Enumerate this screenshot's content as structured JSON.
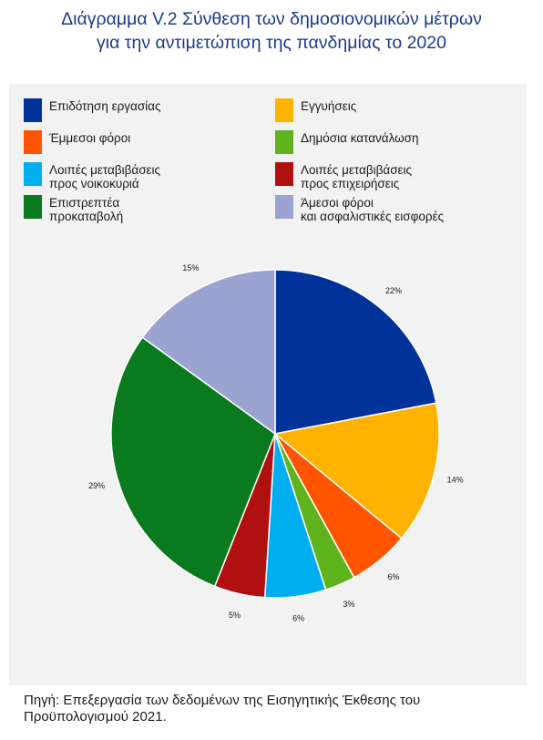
{
  "title": {
    "line1": "Διάγραμμα V.2 Σύνθεση των δημοσιονομικών μέτρων",
    "line2": "για την αντιμετώπιση της πανδημίας το 2020"
  },
  "legend": [
    {
      "line1": "Επιδότηση εργασίας",
      "line2": "",
      "color": "#003399"
    },
    {
      "line1": "Εγγυήσεις",
      "line2": "",
      "color": "#FFB300"
    },
    {
      "line1": "Έμμεσοι φόροι",
      "line2": "",
      "color": "#FF5500"
    },
    {
      "line1": "Δημόσια κατανάλωση",
      "line2": "",
      "color": "#5FB31C"
    },
    {
      "line1": "Λοιπές μεταβιβάσεις",
      "line2": "προς νοικοκυριά",
      "color": "#00AEEF"
    },
    {
      "line1": "Λοιπές μεταβιβάσεις",
      "line2": "προς επιχειρήσεις",
      "color": "#B01010"
    },
    {
      "line1": "Επιστρεπτέα",
      "line2": "προκαταβολή",
      "color": "#0A7A1E"
    },
    {
      "line1": "Άμεσοι φόροι",
      "line2": "και ασφαλιστικές εισφορές",
      "color": "#9BA3D0"
    }
  ],
  "chart_data": {
    "type": "pie",
    "categories": [
      "Επιδότηση εργασίας",
      "Εγγυήσεις",
      "Έμμεσοι φόροι",
      "Δημόσια κατανάλωση",
      "Λοιπές μεταβιβάσεις προς νοικοκυριά",
      "Λοιπές μεταβιβάσεις προς επιχειρήσεις",
      "Επιστρεπτέα προκαταβολή",
      "Άμεσοι φόροι και ασφαλιστικές εισφορές"
    ],
    "values": [
      22,
      14,
      6,
      3,
      6,
      5,
      29,
      15
    ],
    "labels": [
      "22%",
      "14%",
      "6%",
      "3%",
      "6%",
      "5%",
      "29%",
      "15%"
    ],
    "colors": [
      "#003399",
      "#FFB300",
      "#FF5500",
      "#5FB31C",
      "#00AEEF",
      "#B01010",
      "#0A7A1E",
      "#9BA3D0"
    ],
    "start": "12 o'clock",
    "direction": "clockwise",
    "legend_position": "top"
  },
  "source": {
    "line1": "Πηγή: Επεξεργασία των δεδομένων της Εισηγητικής Έκθεσης του",
    "line2": "Προϋπολογισμού 2021."
  }
}
